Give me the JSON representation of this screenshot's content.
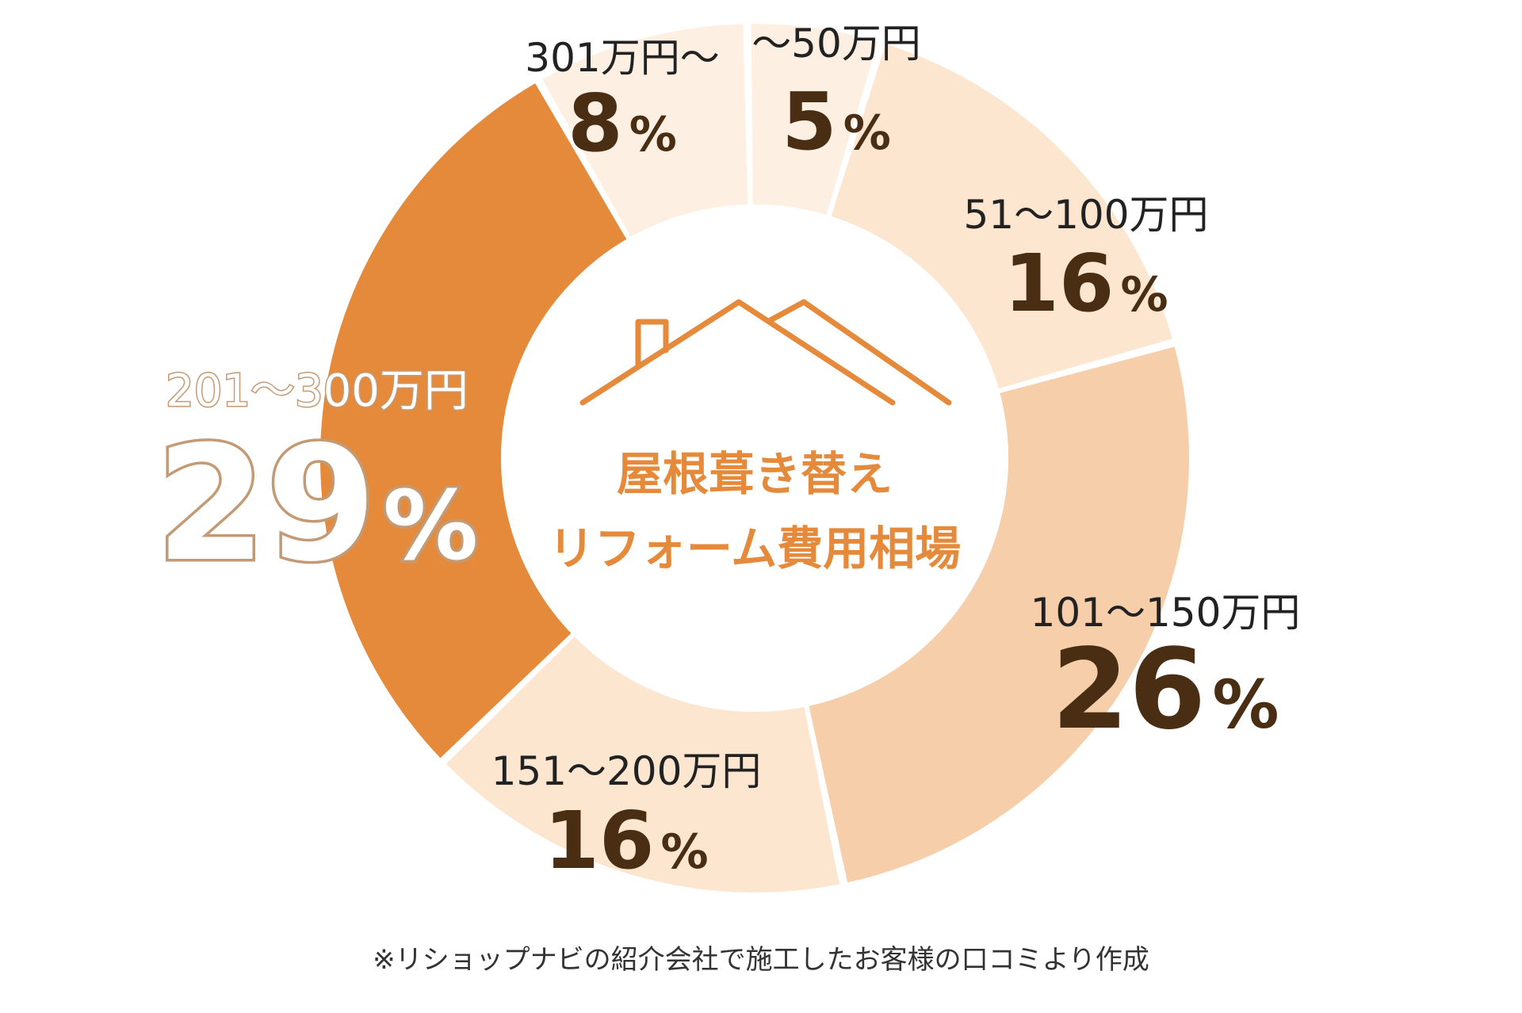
{
  "chart_data": {
    "type": "pie",
    "donut": true,
    "center_title": [
      "屋根葺き替え",
      "リフォーム費用相場"
    ],
    "slices": [
      {
        "category": "〜50万円",
        "value": 5,
        "value_label": "5",
        "color": "#fdf0e3"
      },
      {
        "category": "51〜100万円",
        "value": 16,
        "value_label": "16",
        "color": "#fde6d0"
      },
      {
        "category": "101〜150万円",
        "value": 26,
        "value_label": "26",
        "color": "#f6cfaa"
      },
      {
        "category": "151〜200万円",
        "value": 16,
        "value_label": "16",
        "color": "#fde6d0"
      },
      {
        "category": "201〜300万円",
        "value": 29,
        "value_label": "29",
        "color": "#e5893b"
      },
      {
        "category": "301万円〜",
        "value": 8,
        "value_label": "8",
        "color": "#fdf0e3"
      }
    ],
    "unit": "%",
    "highlight": "201〜300万円"
  },
  "footnote": "※リショップナビの紹介会社で施工したお客様の口コミより作成",
  "colors": {
    "accent": "#e5893b",
    "label_text": "#222222",
    "value_text": "#4a2e14",
    "highlight_stroke": "#c39a74"
  }
}
